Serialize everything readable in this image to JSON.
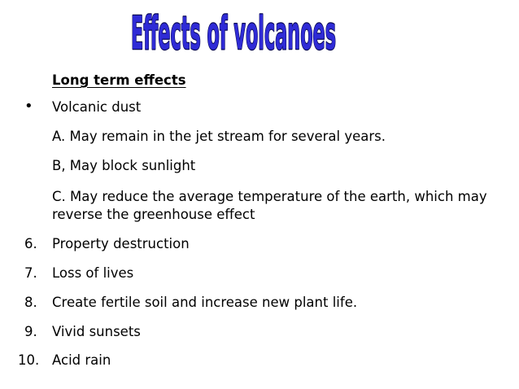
{
  "title": "Effects of volcanoes",
  "colors": {
    "title_fill": "#2f2bd6",
    "title_outline": "#0a0a55",
    "text": "#000000",
    "background": "#ffffff"
  },
  "heading": "Long term effects",
  "bullet": {
    "marker": "•",
    "text": "Volcanic dust"
  },
  "sub_items": [
    "A.  May remain in the jet stream for several years.",
    "B,  May block sunlight",
    "C.  May reduce the average temperature of the earth, which may reverse the greenhouse effect"
  ],
  "numbered": [
    {
      "marker": "6.",
      "text": "Property destruction"
    },
    {
      "marker": "7.",
      "text": "Loss of lives"
    },
    {
      "marker": "8.",
      "text": "Create fertile soil and increase new plant life."
    },
    {
      "marker": "9.",
      "text": "Vivid sunsets"
    },
    {
      "marker": "10.",
      "text": "Acid rain"
    }
  ]
}
